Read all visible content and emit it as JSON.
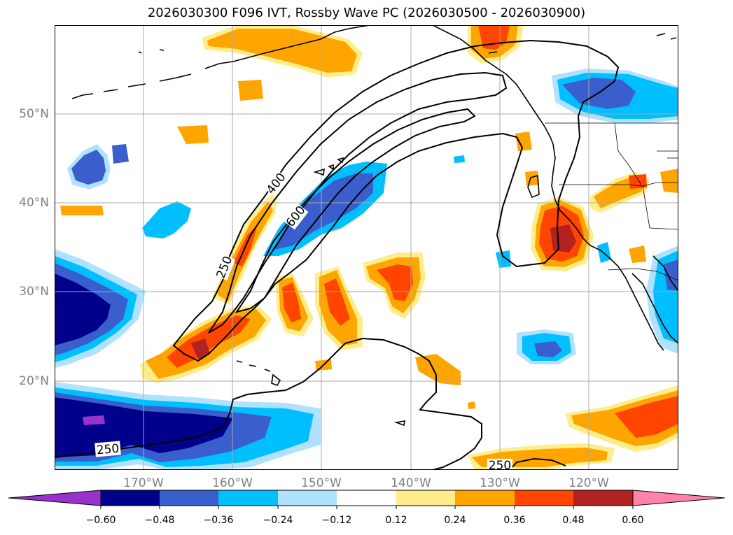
{
  "title": "2026030300 F096 IVT, Rossby Wave PC (2026030500 - 2026030900)",
  "map": {
    "lat_labels": [
      "50°N",
      "40°N",
      "30°N",
      "20°N"
    ],
    "lon_labels": [
      "170°W",
      "160°W",
      "150°W",
      "140°W",
      "130°W",
      "120°W"
    ],
    "contour_labels": [
      "400",
      "600",
      "250",
      "250",
      "250"
    ]
  },
  "colorbar": {
    "tick_labels": [
      "−0.60",
      "−0.48",
      "−0.36",
      "−0.24",
      "−0.12",
      "0.12",
      "0.24",
      "0.36",
      "0.48",
      "0.60"
    ],
    "colors": [
      "#9932cc",
      "#00008b",
      "#3a5fcd",
      "#00bfff",
      "#b0e2ff",
      "#ffffff",
      "#ffec8b",
      "#ffa500",
      "#ff4500",
      "#b22222",
      "#ff82ab"
    ]
  }
}
